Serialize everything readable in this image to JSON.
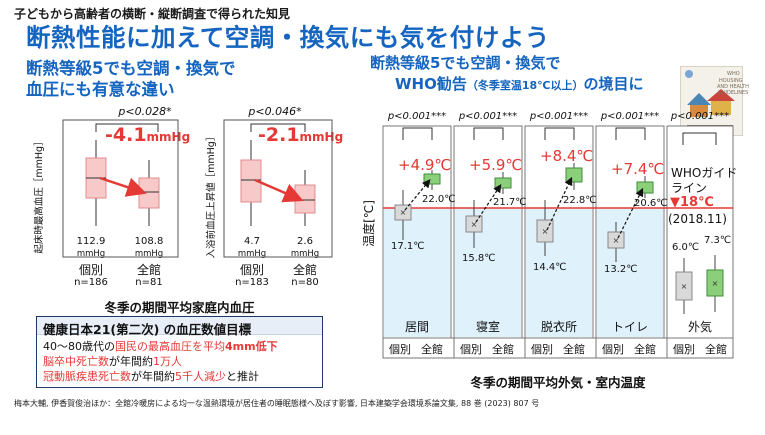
{
  "header": {
    "subtitle": "子どもから高齢者の横断・縦断調査で得られた知見",
    "title": "断熱性能に加えて空調・換気にも気を付けよう"
  },
  "left_panel": {
    "heading_line1": "断熱等級5でも空調・換気で",
    "heading_line2": "血圧にも有意な違い",
    "left_chart": {
      "p_value": "p<0.028*",
      "diff_value": "-4.1",
      "diff_unit": "mmHg",
      "ylabel": "起床時最高血圧［mmHg］",
      "values": [
        "112.9",
        "108.8"
      ],
      "value_unit": "mmHg",
      "categories": [
        "個別",
        "全館"
      ],
      "n_values": [
        "n=186",
        "n=81"
      ]
    },
    "right_chart": {
      "p_value": "p<0.046*",
      "diff_value": "-2.1",
      "diff_unit": "mmHg",
      "ylabel": "入浴前血圧上昇値［mmHg］",
      "values": [
        "4.7",
        "2.6"
      ],
      "value_unit": "mmHg",
      "categories": [
        "個別",
        "全館"
      ],
      "n_values": [
        "n=183",
        "n=80"
      ]
    },
    "caption": "冬季の期間平均家庭内血圧",
    "goal": {
      "title": "健康日本21(第二次) の血圧数値目標",
      "line1_prefix": "40～80歳代の",
      "line1_red": "国民の最高血圧を平均",
      "line1_bold": "4mm低下",
      "line2_red": "脳卒中死亡数",
      "line2_mid": "が年間約",
      "line2_red2": "1万人",
      "line3_red": "冠動脈疾患死亡数",
      "line3_mid": "が年間約",
      "line3_red2": "5千人減少",
      "line3_suffix": "と推計"
    }
  },
  "right_panel": {
    "heading_line1": "断熱等級5でも空調・換気で",
    "heading_line2a": "WHO勧告",
    "heading_line2b": "（冬季室温18℃以上）",
    "heading_line2c": "の境目に",
    "ylabel": "温度[℃]",
    "rooms": [
      {
        "p": "p<0.001***",
        "name": "居間",
        "diff": "+4.9℃",
        "v1": "17.1℃",
        "v2": "22.0℃"
      },
      {
        "p": "p<0.001***",
        "name": "寝室",
        "diff": "+5.9℃",
        "v1": "15.8℃",
        "v2": "21.7℃"
      },
      {
        "p": "p<0.001***",
        "name": "脱衣所",
        "diff": "+8.4℃",
        "v1": "14.4℃",
        "v2": "22.8℃"
      },
      {
        "p": "p<0.001***",
        "name": "トイレ",
        "diff": "+7.4℃",
        "v1": "13.2℃",
        "v2": "20.6℃"
      }
    ],
    "outdoor": {
      "p": "p<0.001***",
      "name": "外気",
      "v1": "6.0℃",
      "v2": "7.3℃"
    },
    "who": {
      "label_line1": "WHOガイド",
      "label_line2": "ライン",
      "threshold": "▼18℃",
      "year": "(2018.11)",
      "book_text_1": "WHO",
      "book_text_2": "HOUSING",
      "book_text_3": "AND HEALTH",
      "book_text_4": "GUIDELINES"
    },
    "x_labels": [
      "個別",
      "全館"
    ],
    "caption": "冬季の期間平均外気・室内温度"
  },
  "citation": "梅本大輔, 伊香賀俊治ほか：全館冷暖房による均一な温熱環境が居住者の睡眠態様へ及ぼす影響, 日本建築学会環境系論文集, 88 巻 (2023) 807 号",
  "colors": {
    "title_blue": "#1565c0",
    "accent_red": "#e53935",
    "box_pink": "#f7c9c9",
    "box_pink_border": "#e38c8c",
    "box_green": "#8ccf7a",
    "box_green_border": "#3e8e3a",
    "light_blue_bg": "#dff1fb",
    "box_gray": "#d9d9d9"
  }
}
